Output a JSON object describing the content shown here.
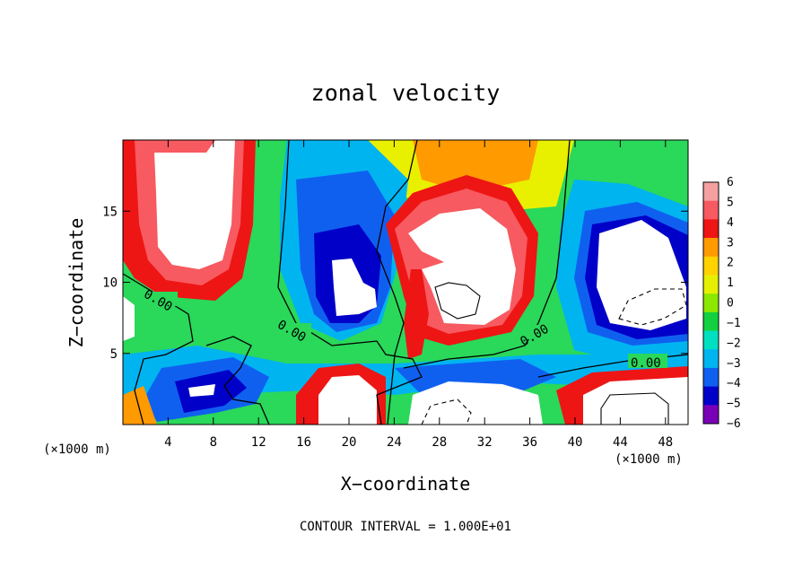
{
  "chart_data": {
    "type": "heatmap",
    "title": "zonal velocity",
    "xlabel": "X−coordinate",
    "ylabel": "Z−coordinate",
    "x_unit_label": "(×1000 m)",
    "y_unit_label": "(×1000 m)",
    "xlim": [
      0,
      50
    ],
    "ylim": [
      0,
      20
    ],
    "x_ticks": [
      4,
      8,
      12,
      16,
      20,
      24,
      28,
      32,
      36,
      40,
      44,
      48
    ],
    "y_ticks": [
      5,
      10,
      15
    ],
    "footer": "CONTOUR INTERVAL = 1.000E+01",
    "contour_labels": [
      "0.00",
      "0.00",
      "0.00",
      "0.00"
    ],
    "colorbar": {
      "min": -6,
      "max": 6,
      "tick_labels": [
        "6",
        "5",
        "4",
        "3",
        "2",
        "1",
        "0",
        "−1",
        "−2",
        "−3",
        "−4",
        "−5",
        "−6"
      ],
      "colors": [
        "#f4a0a0",
        "#f75a60",
        "#ee1515",
        "#ff9a00",
        "#ffd200",
        "#e5f000",
        "#8ce800",
        "#12d040",
        "#00e0c0",
        "#00b4f0",
        "#1060f0",
        "#0000c8",
        "#7a00b8"
      ]
    },
    "features": [
      {
        "kind": "positive-jet",
        "x_range": [
          0,
          11
        ],
        "z_range": [
          9,
          20
        ]
      },
      {
        "kind": "negative-cell",
        "x_range": [
          15,
          24
        ],
        "z_range": [
          7,
          16
        ]
      },
      {
        "kind": "positive-cell",
        "x_range": [
          24,
          36
        ],
        "z_range": [
          6,
          17
        ]
      },
      {
        "kind": "negative-cell",
        "x_range": [
          40,
          50
        ],
        "z_range": [
          4,
          15
        ]
      },
      {
        "kind": "negative-layer",
        "x_range": [
          5,
          40
        ],
        "z_range": [
          0,
          5
        ]
      },
      {
        "kind": "positive-layer",
        "x_range": [
          38,
          50
        ],
        "z_range": [
          0,
          3
        ]
      }
    ]
  }
}
